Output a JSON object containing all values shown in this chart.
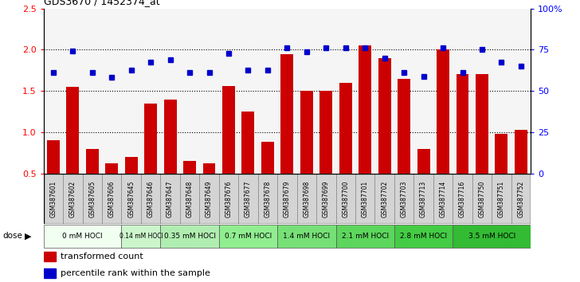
{
  "title": "GDS3670 / 1452374_at",
  "samples": [
    "GSM387601",
    "GSM387602",
    "GSM387605",
    "GSM387606",
    "GSM387645",
    "GSM387646",
    "GSM387647",
    "GSM387648",
    "GSM387649",
    "GSM387676",
    "GSM387677",
    "GSM387678",
    "GSM387679",
    "GSM387698",
    "GSM387699",
    "GSM387700",
    "GSM387701",
    "GSM387702",
    "GSM387703",
    "GSM387713",
    "GSM387714",
    "GSM387716",
    "GSM387750",
    "GSM387751",
    "GSM387752"
  ],
  "bar_values": [
    0.9,
    1.55,
    0.8,
    0.62,
    0.7,
    1.35,
    1.4,
    0.65,
    0.62,
    1.56,
    1.25,
    0.88,
    1.95,
    1.5,
    1.5,
    1.6,
    2.05,
    1.9,
    1.65,
    0.8,
    2.0,
    1.7,
    1.7,
    0.98,
    1.03
  ],
  "scatter_values": [
    1.72,
    1.98,
    1.72,
    1.67,
    1.75,
    1.85,
    1.88,
    1.72,
    1.72,
    1.96,
    1.75,
    1.75,
    2.02,
    1.97,
    2.02,
    2.02,
    2.02,
    1.9,
    1.72,
    1.68,
    2.02,
    1.72,
    2.0,
    1.85,
    1.8
  ],
  "dose_groups": [
    {
      "label": "0 mM HOCl",
      "start": 0,
      "end": 4,
      "color": "#f0fff0"
    },
    {
      "label": "0.14 mM HOCl",
      "start": 4,
      "end": 6,
      "color": "#ccf5cc"
    },
    {
      "label": "0.35 mM HOCl",
      "start": 6,
      "end": 9,
      "color": "#b0edb0"
    },
    {
      "label": "0.7 mM HOCl",
      "start": 9,
      "end": 12,
      "color": "#90ee90"
    },
    {
      "label": "1.4 mM HOCl",
      "start": 12,
      "end": 15,
      "color": "#76e076"
    },
    {
      "label": "2.1 mM HOCl",
      "start": 15,
      "end": 18,
      "color": "#5cd65c"
    },
    {
      "label": "2.8 mM HOCl",
      "start": 18,
      "end": 21,
      "color": "#44cc44"
    },
    {
      "label": "3.5 mM HOCl",
      "start": 21,
      "end": 25,
      "color": "#33bb33"
    }
  ],
  "bar_color": "#cc0000",
  "scatter_color": "#0000cc",
  "ylim": [
    0.5,
    2.5
  ],
  "yticks_left": [
    0.5,
    1.0,
    1.5,
    2.0,
    2.5
  ],
  "yticks_right": [
    0.5,
    1.0,
    1.5,
    2.0,
    2.5
  ],
  "y2labels": [
    "0",
    "25",
    "50",
    "75",
    "100%"
  ],
  "legend_bar": "transformed count",
  "legend_scatter": "percentile rank within the sample",
  "dose_label": "dose",
  "plot_bg": "#f5f5f5",
  "sample_box_bg": "#d4d4d4"
}
